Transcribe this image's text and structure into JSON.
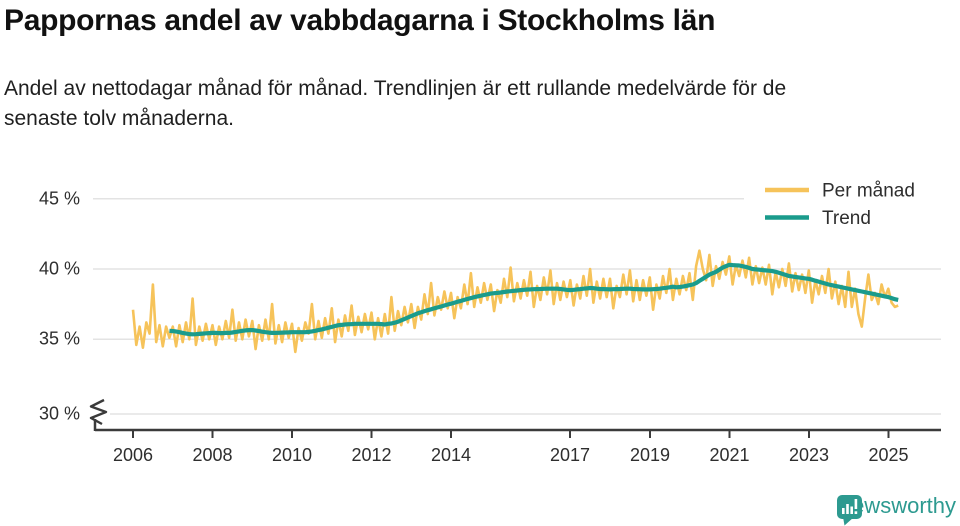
{
  "header": {
    "title": "Pappornas andel av vabbdagarna i Stockholms län",
    "subtitle": "Andel av nettodagar månad för månad. Trendlinjen är ett rullande medelvärde för de senaste tolv månaderna."
  },
  "footer": {
    "brand": "Newsworthy",
    "brand_color": "#2d9a90",
    "icon": "newsworthy-barchart-bubble-icon"
  },
  "colors": {
    "monthly_line": "#F6C35A",
    "trend_line": "#1A9B8C",
    "gridline": "#e3e3e3",
    "axis": "#3b3b3b"
  },
  "chart_data": {
    "type": "line",
    "title": "Pappornas andel av vabbdagarna i Stockholms län",
    "unit": "%",
    "x_start": {
      "year": 2006,
      "month": 1
    },
    "months_per_pixel_note": "monthly resolution, Jan 2006 - Apr 2025",
    "ylim_shown": [
      30,
      45
    ],
    "axis_break": true,
    "grid": true,
    "legend_position": "top-right",
    "y_ticks": [
      {
        "label": "45 %",
        "value": 45
      },
      {
        "label": "40 %",
        "value": 40
      },
      {
        "label": "35 %",
        "value": 35
      },
      {
        "label": "30 %",
        "value": 30
      }
    ],
    "x_ticks": [
      {
        "label": "2006"
      },
      {
        "label": "2008"
      },
      {
        "label": "2010"
      },
      {
        "label": "2012"
      },
      {
        "label": "2014"
      },
      {
        "label": "2017"
      },
      {
        "label": "2019"
      },
      {
        "label": "2021"
      },
      {
        "label": "2023"
      },
      {
        "label": "2025"
      }
    ],
    "series": [
      {
        "name": "Per månad",
        "color": "#F6C35A",
        "start_month_index": 0,
        "values": [
          37.1,
          34.6,
          35.9,
          34.4,
          36.2,
          35.4,
          38.9,
          34.8,
          36.0,
          34.5,
          35.9,
          35.1,
          35.9,
          34.5,
          36.0,
          34.8,
          36.2,
          35.0,
          37.9,
          34.6,
          35.9,
          34.9,
          36.1,
          35.0,
          36.0,
          34.6,
          35.9,
          35.0,
          36.3,
          35.1,
          37.1,
          34.9,
          36.2,
          35.0,
          36.4,
          35.2,
          36.3,
          34.3,
          36.0,
          34.9,
          36.4,
          35.0,
          37.5,
          34.7,
          36.0,
          34.8,
          36.2,
          35.1,
          36.1,
          34.1,
          35.8,
          34.9,
          36.2,
          35.4,
          37.5,
          35.0,
          36.3,
          35.1,
          36.5,
          35.4,
          37.2,
          34.8,
          36.4,
          35.2,
          36.7,
          35.6,
          37.4,
          35.3,
          36.6,
          35.5,
          36.8,
          35.7,
          36.9,
          35.0,
          36.5,
          35.2,
          36.8,
          35.4,
          38.0,
          35.6,
          37.0,
          36.0,
          37.3,
          36.2,
          37.5,
          35.8,
          37.3,
          36.4,
          38.2,
          36.8,
          39.0,
          36.7,
          38.0,
          37.1,
          38.4,
          37.2,
          38.3,
          36.5,
          38.0,
          37.2,
          38.9,
          37.5,
          39.7,
          37.3,
          38.7,
          37.6,
          39.0,
          37.8,
          38.9,
          37.0,
          38.5,
          37.6,
          39.3,
          38.0,
          40.1,
          37.7,
          39.0,
          37.9,
          39.2,
          38.1,
          39.8,
          37.3,
          38.8,
          37.8,
          39.4,
          38.2,
          39.9,
          37.5,
          39.0,
          37.8,
          39.1,
          38.0,
          39.2,
          37.4,
          38.9,
          37.9,
          39.5,
          38.1,
          40.0,
          37.6,
          39.1,
          37.9,
          39.3,
          38.0,
          39.3,
          37.2,
          38.8,
          38.0,
          39.6,
          38.2,
          39.9,
          37.7,
          39.2,
          37.8,
          39.2,
          38.1,
          39.4,
          37.1,
          38.9,
          37.9,
          39.5,
          38.3,
          40.0,
          37.8,
          39.3,
          38.2,
          39.5,
          38.5,
          39.7,
          37.8,
          40.2,
          41.3,
          40.0,
          39.2,
          41.0,
          38.8,
          40.2,
          39.3,
          40.5,
          39.6,
          40.9,
          38.9,
          40.3,
          39.5,
          40.6,
          39.4,
          40.8,
          38.9,
          40.2,
          39.0,
          40.1,
          38.9,
          40.3,
          38.2,
          39.8,
          38.7,
          40.0,
          38.8,
          40.4,
          38.4,
          39.7,
          38.5,
          39.6,
          38.3,
          39.9,
          37.6,
          39.2,
          38.2,
          39.5,
          38.3,
          40.0,
          37.9,
          39.1,
          37.5,
          38.8,
          37.3,
          39.8,
          37.3,
          38.6,
          36.8,
          35.9,
          37.9,
          39.6,
          37.8,
          38.3,
          37.5,
          38.9,
          38.0,
          38.6,
          37.6,
          37.3,
          37.4
        ]
      },
      {
        "name": "Trend",
        "color": "#1A9B8C",
        "start_month_index": 11,
        "values": [
          35.6,
          35.58,
          35.55,
          35.5,
          35.45,
          35.4,
          35.37,
          35.35,
          35.36,
          35.38,
          35.4,
          35.42,
          35.44,
          35.45,
          35.45,
          35.44,
          35.44,
          35.45,
          35.45,
          35.48,
          35.52,
          35.56,
          35.6,
          35.63,
          35.65,
          35.65,
          35.62,
          35.58,
          35.54,
          35.5,
          35.47,
          35.45,
          35.45,
          35.46,
          35.47,
          35.48,
          35.49,
          35.5,
          35.5,
          35.5,
          35.5,
          35.5,
          35.52,
          35.56,
          35.6,
          35.65,
          35.7,
          35.76,
          35.82,
          35.88,
          35.94,
          36.0,
          36.02,
          36.05,
          36.07,
          36.08,
          36.1,
          36.1,
          36.1,
          36.1,
          36.1,
          36.1,
          36.1,
          36.1,
          36.08,
          36.05,
          36.1,
          36.12,
          36.18,
          36.25,
          36.35,
          36.45,
          36.55,
          36.65,
          36.75,
          36.85,
          36.92,
          37.0,
          37.07,
          37.13,
          37.2,
          37.27,
          37.33,
          37.4,
          37.47,
          37.53,
          37.6,
          37.67,
          37.73,
          37.8,
          37.87,
          37.93,
          38.0,
          38.05,
          38.1,
          38.15,
          38.2,
          38.25,
          38.28,
          38.3,
          38.33,
          38.36,
          38.4,
          38.42,
          38.45,
          38.47,
          38.5,
          38.52,
          38.54,
          38.55,
          38.56,
          38.57,
          38.58,
          38.59,
          38.6,
          38.6,
          38.6,
          38.6,
          38.58,
          38.55,
          38.52,
          38.5,
          38.52,
          38.55,
          38.57,
          38.6,
          38.62,
          38.65,
          38.63,
          38.6,
          38.58,
          38.57,
          38.56,
          38.55,
          38.56,
          38.57,
          38.58,
          38.59,
          38.6,
          38.6,
          38.58,
          38.57,
          38.56,
          38.55,
          38.55,
          38.55,
          38.56,
          38.58,
          38.6,
          38.63,
          38.66,
          38.7,
          38.74,
          38.7,
          38.72,
          38.75,
          38.8,
          38.85,
          38.9,
          39.0,
          39.15,
          39.3,
          39.45,
          39.6,
          39.7,
          39.8,
          39.95,
          40.1,
          40.2,
          40.3,
          40.28,
          40.26,
          40.25,
          40.2,
          40.15,
          40.08,
          40.0,
          39.97,
          39.95,
          39.92,
          39.9,
          39.88,
          39.85,
          39.8,
          39.73,
          39.65,
          39.58,
          39.5,
          39.47,
          39.43,
          39.4,
          39.37,
          39.33,
          39.3,
          39.24,
          39.17,
          39.1,
          39.03,
          38.97,
          38.9,
          38.85,
          38.8,
          38.75,
          38.7,
          38.65,
          38.6,
          38.55,
          38.5,
          38.45,
          38.4,
          38.35,
          38.3,
          38.25,
          38.2,
          38.15,
          38.1,
          38.05,
          38.0,
          37.93,
          37.85,
          37.8
        ]
      }
    ]
  }
}
